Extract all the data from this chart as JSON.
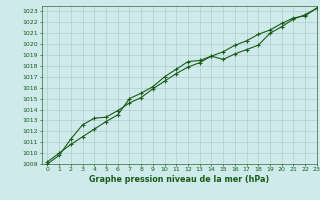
{
  "title": "Graphe pression niveau de la mer (hPa)",
  "bg_color": "#ceeaea",
  "grid_color": "#b0cccc",
  "line_color": "#1a5c1a",
  "spine_color": "#336633",
  "xlim": [
    -0.5,
    23
  ],
  "ylim": [
    1009,
    1023.5
  ],
  "xticks": [
    0,
    1,
    2,
    3,
    4,
    5,
    6,
    7,
    8,
    9,
    10,
    11,
    12,
    13,
    14,
    15,
    16,
    17,
    18,
    19,
    20,
    21,
    22,
    23
  ],
  "yticks": [
    1009,
    1010,
    1011,
    1012,
    1013,
    1014,
    1015,
    1016,
    1017,
    1018,
    1019,
    1020,
    1021,
    1022,
    1023
  ],
  "series1_x": [
    0,
    1,
    2,
    3,
    4,
    5,
    6,
    7,
    8,
    9,
    10,
    11,
    12,
    13,
    14,
    15,
    16,
    17,
    18,
    19,
    20,
    21,
    22,
    23
  ],
  "series1_y": [
    1009.2,
    1010.0,
    1010.8,
    1011.5,
    1012.2,
    1012.9,
    1013.5,
    1015.0,
    1015.5,
    1016.1,
    1017.0,
    1017.7,
    1018.4,
    1018.5,
    1018.9,
    1018.6,
    1019.1,
    1019.5,
    1019.9,
    1021.0,
    1021.6,
    1022.3,
    1022.7,
    1023.3
  ],
  "series2_x": [
    0,
    1,
    2,
    3,
    4,
    5,
    6,
    7,
    8,
    9,
    10,
    11,
    12,
    13,
    14,
    15,
    16,
    17,
    18,
    19,
    20,
    21,
    22,
    23
  ],
  "series2_y": [
    1009.0,
    1009.8,
    1011.3,
    1012.6,
    1013.2,
    1013.3,
    1013.9,
    1014.6,
    1015.1,
    1015.9,
    1016.6,
    1017.3,
    1017.9,
    1018.3,
    1018.9,
    1019.3,
    1019.9,
    1020.3,
    1020.9,
    1021.3,
    1021.9,
    1022.4,
    1022.6,
    1023.3
  ],
  "tick_labelsize": 4.5,
  "xlabel_fontsize": 5.8,
  "marker_size": 3.0,
  "linewidth": 0.8
}
